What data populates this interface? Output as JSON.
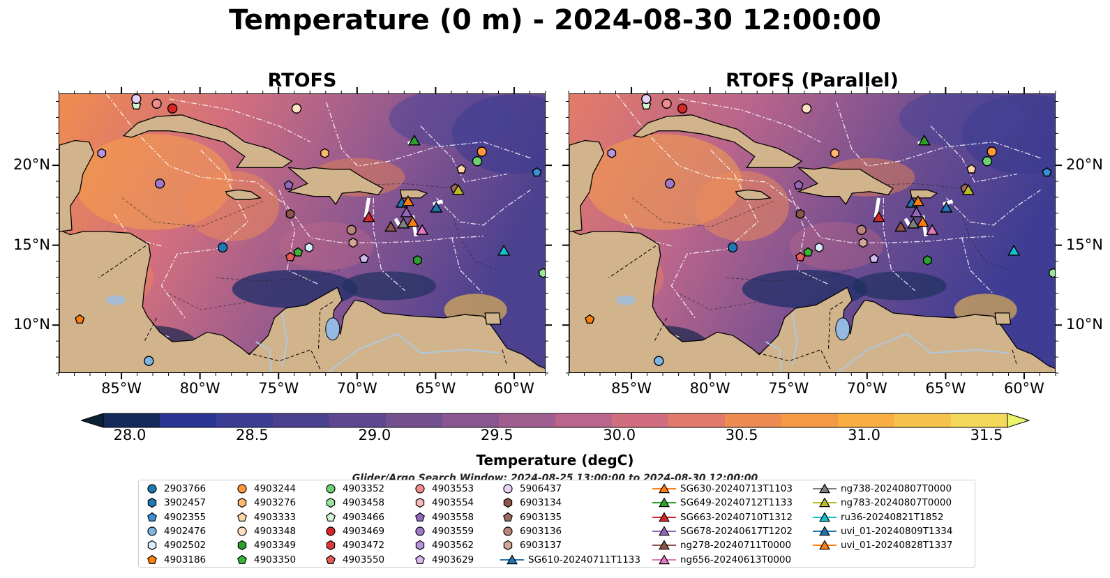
{
  "title": "Temperature (0 m) - 2024-08-30 12:00:00",
  "panels": [
    {
      "title": "RTOFS"
    },
    {
      "title": "RTOFS (Parallel)"
    }
  ],
  "map": {
    "lon_range": [
      -89,
      -58
    ],
    "lat_range": [
      7,
      24.5
    ],
    "lat_ticks": [
      "20°N",
      "15°N",
      "10°N"
    ],
    "lat_tick_values": [
      20,
      15,
      10
    ],
    "lon_ticks": [
      "85°W",
      "80°W",
      "75°W",
      "70°W",
      "65°W",
      "60°W"
    ],
    "lon_tick_values": [
      -85,
      -80,
      -75,
      -70,
      -65,
      -60
    ],
    "land_color": "#d2b48c",
    "water_color": "#5b4c91"
  },
  "colorbar": {
    "label": "Temperature (degC)",
    "ticks": [
      "28.0",
      "28.5",
      "29.0",
      "29.5",
      "30.0",
      "30.5",
      "31.0",
      "31.5"
    ],
    "colors": [
      "#0a2235",
      "#12295a",
      "#283593",
      "#3b3c93",
      "#4c418f",
      "#5e478e",
      "#74508f",
      "#8a5691",
      "#a05e90",
      "#b9658c",
      "#d06e80",
      "#e27a6c",
      "#ee8a52",
      "#f59a44",
      "#f8ae43",
      "#f6c44c",
      "#f3d85a",
      "#ebf56b"
    ]
  },
  "search_window": "Glider/Argo Search Window: 2024-08-25 13:00:00 to 2024-08-30 12:00:00",
  "legend": {
    "columns": [
      [
        {
          "label": "2903766",
          "marker": "circle",
          "color": "#1f77b4"
        },
        {
          "label": "3902457",
          "marker": "hexagon",
          "color": "#1f77b4"
        },
        {
          "label": "4902355",
          "marker": "pentagon",
          "color": "#3a8fd6"
        },
        {
          "label": "4902476",
          "marker": "circle",
          "color": "#7cb5e4"
        },
        {
          "label": "4902502",
          "marker": "hexagon",
          "color": "#d8ecfb"
        },
        {
          "label": "4903186",
          "marker": "pentagon",
          "color": "#ff7f0e"
        }
      ],
      [
        {
          "label": "4903244",
          "marker": "circle",
          "color": "#ff9a3c"
        },
        {
          "label": "4903276",
          "marker": "hexagon",
          "color": "#ffb870"
        },
        {
          "label": "4903333",
          "marker": "pentagon",
          "color": "#ffd5a8"
        },
        {
          "label": "4903348",
          "marker": "circle",
          "color": "#ffe0c0"
        },
        {
          "label": "4903349",
          "marker": "hexagon",
          "color": "#2ca02c"
        },
        {
          "label": "4903350",
          "marker": "pentagon",
          "color": "#3cb43c"
        }
      ],
      [
        {
          "label": "4903352",
          "marker": "circle",
          "color": "#6fd06f"
        },
        {
          "label": "4903458",
          "marker": "hexagon",
          "color": "#9be49b"
        },
        {
          "label": "4903466",
          "marker": "pentagon",
          "color": "#d2f5d2"
        },
        {
          "label": "4903469",
          "marker": "circle",
          "color": "#d62728"
        },
        {
          "label": "4903472",
          "marker": "hexagon",
          "color": "#e0393a"
        },
        {
          "label": "4903550",
          "marker": "pentagon",
          "color": "#e85a5a"
        }
      ],
      [
        {
          "label": "4903553",
          "marker": "circle",
          "color": "#f08c8c"
        },
        {
          "label": "4903554",
          "marker": "hexagon",
          "color": "#f7b9b9"
        },
        {
          "label": "4903558",
          "marker": "pentagon",
          "color": "#9467bd"
        },
        {
          "label": "4903559",
          "marker": "circle",
          "color": "#a07ac8"
        },
        {
          "label": "4903562",
          "marker": "hexagon",
          "color": "#b895dc"
        },
        {
          "label": "4903629",
          "marker": "pentagon",
          "color": "#d2b9ee"
        }
      ],
      [
        {
          "label": "5906437",
          "marker": "circle",
          "color": "#e6d3f7"
        },
        {
          "label": "6903134",
          "marker": "hexagon",
          "color": "#8c564b"
        },
        {
          "label": "6903135",
          "marker": "pentagon",
          "color": "#9c6a5e"
        },
        {
          "label": "6903136",
          "marker": "circle",
          "color": "#b8877b"
        },
        {
          "label": "6903137",
          "marker": "hexagon",
          "color": "#d4a899"
        },
        {
          "label": "SG610-20240711T1133",
          "marker": "triangle-line",
          "color": "#1f77b4"
        }
      ],
      [
        {
          "label": "SG630-20240713T1103",
          "marker": "triangle-line",
          "color": "#ff7f0e"
        },
        {
          "label": "SG649-20240712T1133",
          "marker": "triangle-line",
          "color": "#2ca02c"
        },
        {
          "label": "SG663-20240710T1312",
          "marker": "triangle-line",
          "color": "#d62728"
        },
        {
          "label": "SG678-20240617T1202",
          "marker": "triangle-line",
          "color": "#9467bd"
        },
        {
          "label": "ng278-20240711T0000",
          "marker": "triangle-line",
          "color": "#8c564b"
        },
        {
          "label": "ng656-20240613T0000",
          "marker": "triangle-line",
          "color": "#e377c2"
        }
      ],
      [
        {
          "label": "ng738-20240807T0000",
          "marker": "triangle-line",
          "color": "#7f7f7f"
        },
        {
          "label": "ng783-20240807T0000",
          "marker": "triangle-line",
          "color": "#bcbd22"
        },
        {
          "label": "ru36-20240821T1852",
          "marker": "triangle-line",
          "color": "#17becf"
        },
        {
          "label": "uvi_01-20240809T1334",
          "marker": "triangle-line",
          "color": "#1f77b4"
        },
        {
          "label": "uvi_01-20240828T1337",
          "marker": "triangle-line",
          "color": "#ff7f0e"
        }
      ]
    ]
  },
  "platforms": [
    {
      "id": "2903766",
      "marker": "circle",
      "color": "#1f77b4",
      "lon": -78.6,
      "lat": 14.9
    },
    {
      "id": "4902355",
      "marker": "pentagon",
      "color": "#3a8fd6",
      "lon": -58.6,
      "lat": 19.6
    },
    {
      "id": "4902476",
      "marker": "circle",
      "color": "#7cb5e4",
      "lon": -83.3,
      "lat": 7.8
    },
    {
      "id": "4902502",
      "marker": "hexagon",
      "color": "#d8ecfb",
      "lon": -73.1,
      "lat": 14.9
    },
    {
      "id": "4903186",
      "marker": "pentagon",
      "color": "#ff7f0e",
      "lon": -87.7,
      "lat": 10.4
    },
    {
      "id": "4903244",
      "marker": "circle",
      "color": "#ff9a3c",
      "lon": -62.1,
      "lat": 20.9
    },
    {
      "id": "4903276",
      "marker": "hexagon",
      "color": "#ffb870",
      "lon": -72.1,
      "lat": 20.8
    },
    {
      "id": "4903333",
      "marker": "pentagon",
      "color": "#ffd5a8",
      "lon": -63.4,
      "lat": 19.8
    },
    {
      "id": "4903348",
      "marker": "circle",
      "color": "#ffe0c0",
      "lon": -73.9,
      "lat": 23.6
    },
    {
      "id": "4903349",
      "marker": "hexagon",
      "color": "#2ca02c",
      "lon": -66.2,
      "lat": 14.1
    },
    {
      "id": "4903350",
      "marker": "pentagon",
      "color": "#3cb43c",
      "lon": -73.8,
      "lat": 14.6
    },
    {
      "id": "4903352",
      "marker": "circle",
      "color": "#6fd06f",
      "lon": -62.4,
      "lat": 20.3
    },
    {
      "id": "4903458",
      "marker": "hexagon",
      "color": "#9be49b",
      "lon": -58.2,
      "lat": 13.3
    },
    {
      "id": "4903466",
      "marker": "pentagon",
      "color": "#d2f5d2",
      "lon": -84.1,
      "lat": 23.8
    },
    {
      "id": "4903469",
      "marker": "circle",
      "color": "#d62728",
      "lon": -81.8,
      "lat": 23.6
    },
    {
      "id": "4903550",
      "marker": "pentagon",
      "color": "#e85a5a",
      "lon": -74.3,
      "lat": 14.3
    },
    {
      "id": "4903553",
      "marker": "circle",
      "color": "#f08c8c",
      "lon": -82.8,
      "lat": 23.9
    },
    {
      "id": "4903558",
      "marker": "pentagon",
      "color": "#9467bd",
      "lon": -74.4,
      "lat": 18.8
    },
    {
      "id": "4903559",
      "marker": "circle",
      "color": "#a07ac8",
      "lon": -82.6,
      "lat": 18.9
    },
    {
      "id": "4903562",
      "marker": "hexagon",
      "color": "#b895dc",
      "lon": -86.3,
      "lat": 20.8
    },
    {
      "id": "4903629",
      "marker": "pentagon",
      "color": "#d2b9ee",
      "lon": -69.6,
      "lat": 14.2
    },
    {
      "id": "5906437",
      "marker": "circle",
      "color": "#e6d3f7",
      "lon": -84.1,
      "lat": 24.2
    },
    {
      "id": "6903134",
      "marker": "hexagon",
      "color": "#8c564b",
      "lon": -74.3,
      "lat": 17.0
    },
    {
      "id": "6903135",
      "marker": "pentagon",
      "color": "#9c6a5e",
      "lon": -63.8,
      "lat": 18.6
    },
    {
      "id": "6903136",
      "marker": "circle",
      "color": "#b8877b",
      "lon": -70.4,
      "lat": 16.0
    },
    {
      "id": "6903137",
      "marker": "hexagon",
      "color": "#d4a899",
      "lon": -70.3,
      "lat": 15.2
    },
    {
      "id": "SG610-20240711T1133",
      "marker": "triangle",
      "color": "#1f77b4",
      "lon": -67.2,
      "lat": 17.7
    },
    {
      "id": "SG630-20240713T1103",
      "marker": "triangle",
      "color": "#ff7f0e",
      "lon": -66.5,
      "lat": 16.5
    },
    {
      "id": "SG649-20240712T1133",
      "marker": "triangle",
      "color": "#2ca02c",
      "lon": -66.4,
      "lat": 21.6
    },
    {
      "id": "SG663-20240710T1312",
      "marker": "triangle",
      "color": "#d62728",
      "lon": -69.3,
      "lat": 16.8
    },
    {
      "id": "SG678-20240617T1202",
      "marker": "triangle",
      "color": "#9467bd",
      "lon": -66.9,
      "lat": 17.1
    },
    {
      "id": "ng278-20240711T0000",
      "marker": "triangle",
      "color": "#8c564b",
      "lon": -67.9,
      "lat": 16.2
    },
    {
      "id": "ng656-20240613T0000",
      "marker": "triangle",
      "color": "#e377c2",
      "lon": -65.9,
      "lat": 16.0
    },
    {
      "id": "ng738-20240807T0000",
      "marker": "triangle",
      "color": "#7f7f7f",
      "lon": -67.1,
      "lat": 16.4
    },
    {
      "id": "ng783-20240807T0000",
      "marker": "triangle",
      "color": "#bcbd22",
      "lon": -63.6,
      "lat": 18.5
    },
    {
      "id": "ru36-20240821T1852",
      "marker": "triangle",
      "color": "#17becf",
      "lon": -60.7,
      "lat": 14.7
    },
    {
      "id": "uvi_01-20240809T1334",
      "marker": "triangle",
      "color": "#1f77b4",
      "lon": -65.0,
      "lat": 17.4
    },
    {
      "id": "uvi_01-20240828T1337",
      "marker": "triangle",
      "color": "#ff7f0e",
      "lon": -66.8,
      "lat": 17.8
    }
  ]
}
